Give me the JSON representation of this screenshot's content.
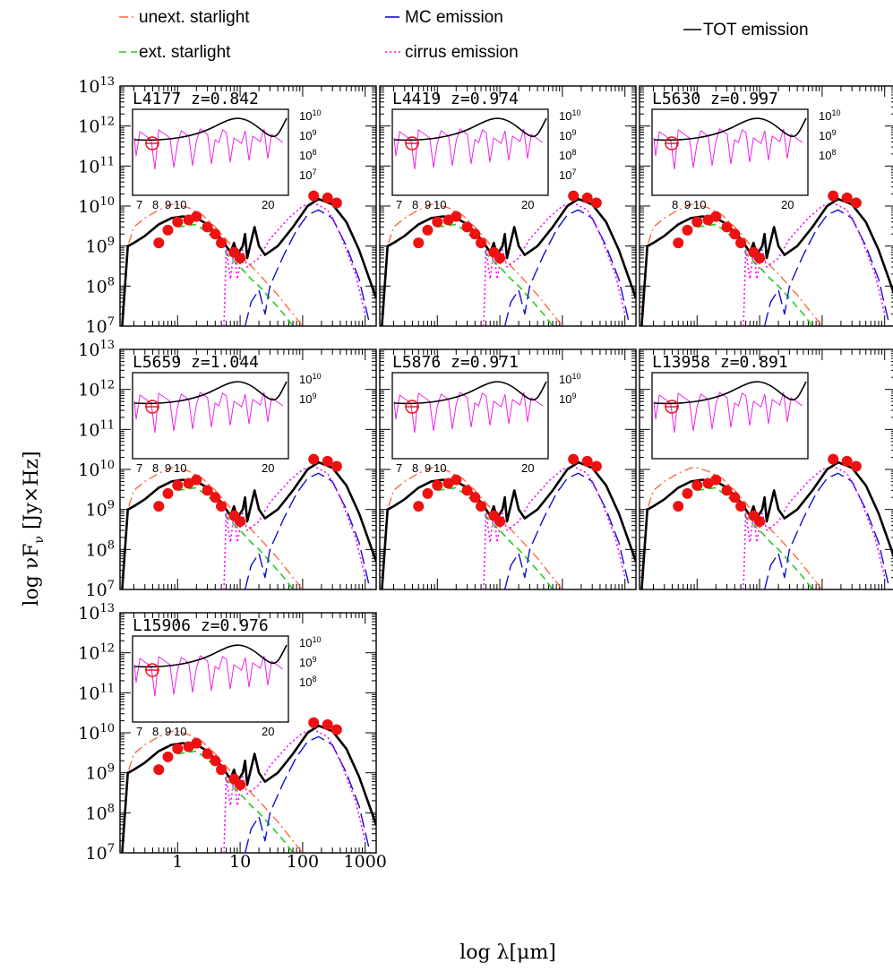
{
  "legend": [
    {
      "label": "unext. starlight",
      "color": "#ff6a3d",
      "dash": "dashdot"
    },
    {
      "label": "MC emission",
      "color": "#1010d0",
      "dash": "longdash"
    },
    {
      "label": "TOT emission",
      "color": "#000000",
      "dash": "solid"
    },
    {
      "label": "ext. starlight",
      "color": "#22cc22",
      "dash": "dash"
    },
    {
      "label": "cirrus emission",
      "color": "#ff00ff",
      "dash": "dot"
    }
  ],
  "axes": {
    "ylabel": "log  νF",
    "ylabel_sub": "ν",
    "ylabel_unit": " [Jy×Hz]",
    "xlabel": "log  λ[μm]",
    "x_ticks": [
      "1",
      "10",
      "100",
      "1000"
    ],
    "y_ticks": [
      "10",
      "10",
      "10",
      "10",
      "10",
      "10",
      "10"
    ],
    "y_tick_exps": [
      "13",
      "12",
      "11",
      "10",
      "9",
      "8",
      "7"
    ]
  },
  "chart_data": {
    "type": "line",
    "x_scale": "log",
    "y_scale": "log",
    "xlim": [
      0.12,
      1500
    ],
    "ylim": [
      10000000.0,
      10000000000000.0
    ],
    "series_names": [
      "unext. starlight",
      "ext. starlight",
      "MC emission",
      "cirrus emission",
      "TOT emission"
    ],
    "panels": [
      {
        "name": "L4177",
        "z": "z=0.842",
        "label": "L4177  z=0.842",
        "inset_y": [
          "10",
          "10",
          "10",
          "10"
        ],
        "inset_y_exps": [
          "10",
          "9",
          "8",
          "7"
        ],
        "inset_x": [
          "7",
          "8",
          "9",
          "10",
          "20"
        ]
      },
      {
        "name": "L4419",
        "z": "z=0.974",
        "label": "L4419  z=0.974",
        "inset_y": [
          "10",
          "10",
          "10",
          "10"
        ],
        "inset_y_exps": [
          "10",
          "9",
          "8",
          "7"
        ],
        "inset_x": [
          "7",
          "8",
          "9",
          "10",
          "20"
        ]
      },
      {
        "name": "L5630",
        "z": "z=0.997",
        "label": "L5630  z=0.997",
        "inset_y": [
          "10",
          "10",
          "10"
        ],
        "inset_y_exps": [
          "10",
          "9",
          "8"
        ],
        "inset_x": [
          "8",
          "9",
          "10",
          "20"
        ]
      },
      {
        "name": "L5659",
        "z": "z=1.044",
        "label": "L5659  z=1.044",
        "inset_y": [
          "10",
          "10"
        ],
        "inset_y_exps": [
          "10",
          "9"
        ],
        "inset_x": [
          "7",
          "8",
          "9",
          "10",
          "20"
        ]
      },
      {
        "name": "L5876",
        "z": "z=0.971",
        "label": "L5876  z=0.971",
        "inset_y": [
          "10",
          "10"
        ],
        "inset_y_exps": [
          "10",
          "9"
        ],
        "inset_x": [
          "7",
          "8",
          "9",
          "10",
          "20"
        ]
      },
      {
        "name": "L13958",
        "z": "z=0.891",
        "label": "L13958  z=0.891",
        "inset_y": [],
        "inset_y_exps": [],
        "inset_x": []
      },
      {
        "name": "L15906",
        "z": "z=0.976",
        "label": "L15906  z=0.976",
        "inset_y": [
          "10",
          "10",
          "10"
        ],
        "inset_y_exps": [
          "10",
          "9",
          "8"
        ],
        "inset_x": [
          "7",
          "8",
          "9",
          "10",
          "20"
        ]
      }
    ],
    "model_curves": {
      "unext_starlight": [
        [
          0.13,
          20000000.0
        ],
        [
          0.16,
          1000000000.0
        ],
        [
          0.2,
          3000000000.0
        ],
        [
          0.3,
          5000000000.0
        ],
        [
          0.5,
          8000000000.0
        ],
        [
          0.8,
          11000000000.0
        ],
        [
          1.0,
          11000000000.0
        ],
        [
          1.5,
          9000000000.0
        ],
        [
          2.5,
          6000000000.0
        ],
        [
          4.0,
          3000000000.0
        ],
        [
          7.0,
          1100000000.0
        ],
        [
          10,
          600000000.0
        ],
        [
          20,
          200000000.0
        ],
        [
          40,
          60000000.0
        ],
        [
          70,
          20000000.0
        ],
        [
          100,
          10000000.0
        ]
      ],
      "ext_starlight": [
        [
          1.0,
          3000000000.0
        ],
        [
          2.0,
          3500000000.0
        ],
        [
          4.0,
          1500000000.0
        ],
        [
          7.0,
          500000000.0
        ],
        [
          10,
          300000000.0
        ],
        [
          15,
          150000000.0
        ],
        [
          20,
          100000000.0
        ],
        [
          30,
          50000000.0
        ],
        [
          50,
          20000000.0
        ],
        [
          70,
          10000000.0
        ]
      ],
      "mc_emission": [
        [
          12,
          10000000.0
        ],
        [
          15,
          40000000.0
        ],
        [
          20,
          80000000.0
        ],
        [
          25,
          20000000.0
        ],
        [
          30,
          100000000.0
        ],
        [
          50,
          600000000.0
        ],
        [
          80,
          2500000000.0
        ],
        [
          120,
          6000000000.0
        ],
        [
          180,
          8000000000.0
        ],
        [
          300,
          5000000000.0
        ],
        [
          500,
          1000000000.0
        ],
        [
          800,
          150000000.0
        ],
        [
          1200,
          10000000.0
        ]
      ],
      "cirrus_emission": [
        [
          5.5,
          10000000.0
        ],
        [
          6.0,
          800000000.0
        ],
        [
          7.0,
          150000000.0
        ],
        [
          8.0,
          800000000.0
        ],
        [
          9.0,
          150000000.0
        ],
        [
          11,
          800000000.0
        ],
        [
          13,
          300000000.0
        ],
        [
          20,
          500000000.0
        ],
        [
          30,
          1500000000.0
        ],
        [
          60,
          5000000000.0
        ],
        [
          100,
          10000000000.0
        ],
        [
          150,
          12000000000.0
        ],
        [
          250,
          8000000000.0
        ],
        [
          400,
          2000000000.0
        ],
        [
          700,
          200000000.0
        ],
        [
          1000,
          20000000.0
        ]
      ],
      "tot_emission": [
        [
          0.13,
          10000000.0
        ],
        [
          0.16,
          1000000000.0
        ],
        [
          0.2,
          1200000000.0
        ],
        [
          0.3,
          1800000000.0
        ],
        [
          0.5,
          3500000000.0
        ],
        [
          0.8,
          5000000000.0
        ],
        [
          1.2,
          5500000000.0
        ],
        [
          2.0,
          5000000000.0
        ],
        [
          3.0,
          3500000000.0
        ],
        [
          5.0,
          1500000000.0
        ],
        [
          7.0,
          700000000.0
        ],
        [
          8.0,
          1200000000.0
        ],
        [
          9.0,
          600000000.0
        ],
        [
          11,
          1000000000.0
        ],
        [
          12,
          2000000000.0
        ],
        [
          13,
          500000000.0
        ],
        [
          17,
          3000000000.0
        ],
        [
          20,
          1000000000.0
        ],
        [
          25,
          600000000.0
        ],
        [
          40,
          1000000000.0
        ],
        [
          70,
          3000000000.0
        ],
        [
          120,
          10000000000.0
        ],
        [
          180,
          15000000000.0
        ],
        [
          300,
          11000000000.0
        ],
        [
          500,
          4000000000.0
        ],
        [
          800,
          800000000.0
        ],
        [
          1500,
          50000000.0
        ]
      ]
    },
    "photometry": [
      [
        1.5,
        4500000000.0
      ],
      [
        2.0,
        5500000000.0
      ],
      [
        3.0,
        3000000000.0
      ],
      [
        4.0,
        2000000000.0
      ],
      [
        0.5,
        1200000000.0
      ],
      [
        0.7,
        2500000000.0
      ],
      [
        1.0,
        4000000000.0
      ],
      [
        5.0,
        1200000000.0
      ],
      [
        8.0,
        700000000.0
      ],
      [
        10,
        500000000.0
      ],
      [
        150,
        18000000000.0
      ],
      [
        250,
        16000000000.0
      ],
      [
        350,
        12000000000.0
      ]
    ]
  }
}
